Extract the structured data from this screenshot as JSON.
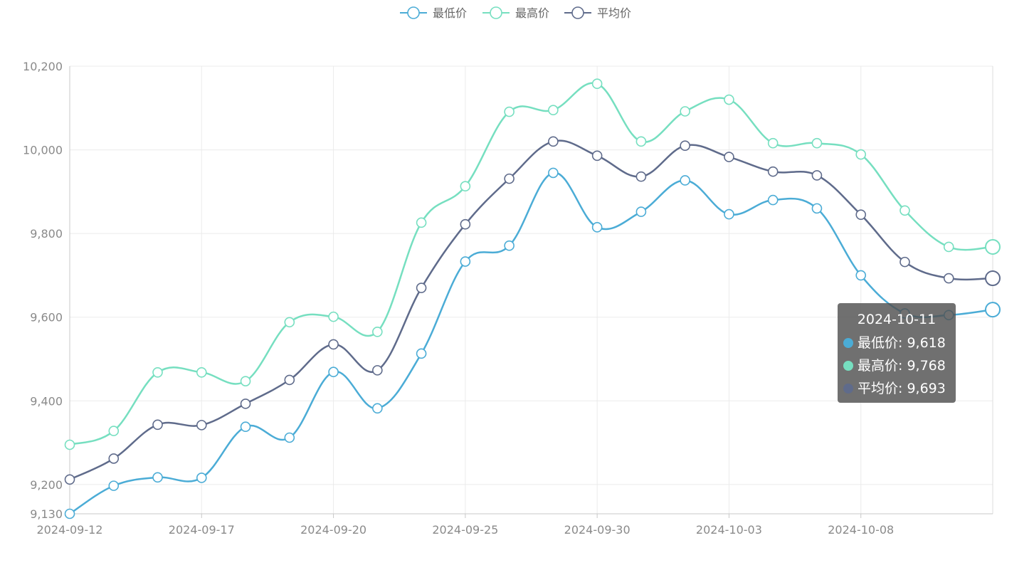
{
  "chart_data": {
    "type": "line",
    "smooth": true,
    "x": [
      "2024-09-12",
      "2024-09-13",
      "2024-09-16",
      "2024-09-17",
      "2024-09-18",
      "2024-09-19",
      "2024-09-20",
      "2024-09-23",
      "2024-09-24",
      "2024-09-25",
      "2024-09-26",
      "2024-09-27",
      "2024-09-30",
      "2024-10-01",
      "2024-10-02",
      "2024-10-03",
      "2024-10-04",
      "2024-10-07",
      "2024-10-08",
      "2024-10-09",
      "2024-10-10",
      "2024-10-11"
    ],
    "xTickLabels": [
      "2024-09-12",
      "2024-09-17",
      "2024-09-20",
      "2024-09-25",
      "2024-09-30",
      "2024-10-03",
      "2024-10-08"
    ],
    "xTickIndices": [
      0,
      3,
      6,
      9,
      12,
      15,
      18
    ],
    "series": [
      {
        "name": "最低价",
        "color": "#4bacd6",
        "values": [
          9130,
          9197,
          9217,
          9216,
          9338,
          9312,
          9469,
          9382,
          9513,
          9733,
          9771,
          9945,
          9815,
          9852,
          9927,
          9846,
          9880,
          9860,
          9700,
          9609,
          9605,
          9618
        ]
      },
      {
        "name": "最高价",
        "color": "#76dfc0",
        "values": [
          9295,
          9328,
          9468,
          9468,
          9447,
          9588,
          9601,
          9565,
          9826,
          9913,
          10091,
          10095,
          10158,
          10020,
          10092,
          10120,
          10016,
          10016,
          9989,
          9855,
          9768,
          9768
        ]
      },
      {
        "name": "平均价",
        "color": "#5f6b8b",
        "values": [
          9212,
          9262,
          9343,
          9342,
          9393,
          9450,
          9535,
          9473,
          9670,
          9822,
          9931,
          10020,
          9986,
          9936,
          10010,
          9983,
          9948,
          9939,
          9845,
          9732,
          9693,
          9693
        ]
      }
    ],
    "yTicks": [
      9130,
      9200,
      9400,
      9600,
      9800,
      10000,
      10200
    ],
    "yTickLabels": [
      "9,130",
      "9,200",
      "9,400",
      "9,600",
      "9,800",
      "10,000",
      "10,200"
    ],
    "ylim": [
      9130,
      10200
    ],
    "grid": true,
    "legend_position": "top-center",
    "tooltip": {
      "title": "2024-10-11",
      "rows": [
        {
          "label": "最低价: 9,618",
          "color": "#4bacd6"
        },
        {
          "label": "最高价: 9,768",
          "color": "#76dfc0"
        },
        {
          "label": "平均价: 9,693",
          "color": "#5f6b8b"
        }
      ]
    }
  }
}
